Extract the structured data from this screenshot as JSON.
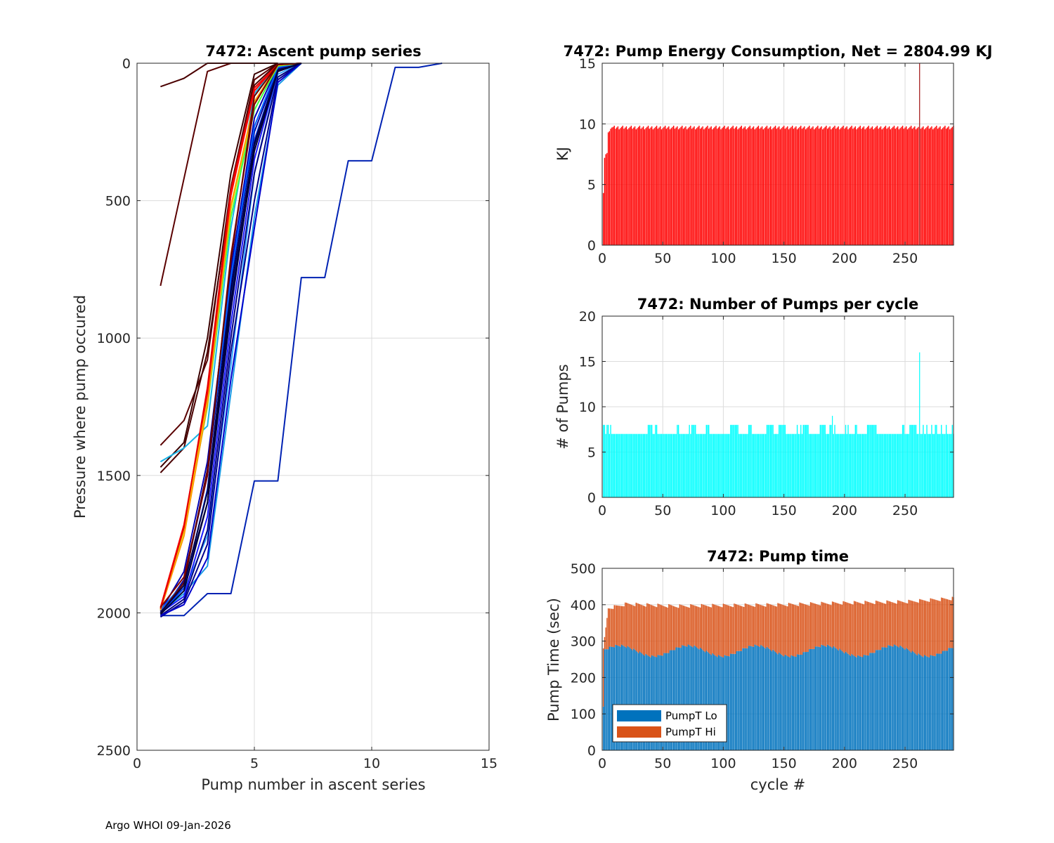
{
  "footer": "Argo WHOI 09-Jan-2026",
  "colors": {
    "energy_bar": "#ff0000",
    "pumps_bar": "#00ffff",
    "pumpT_lo": "#0072bd",
    "pumpT_hi": "#d95319",
    "grid": "#dcdcdc",
    "axis": "#262626"
  },
  "chart_data": [
    {
      "id": "ascent",
      "type": "line",
      "title": "7472: Ascent pump series",
      "xlabel": "Pump number in ascent series",
      "ylabel": "Pressure where pump occured",
      "xlim": [
        0,
        15
      ],
      "ylim": [
        0,
        2500
      ],
      "y_reversed": true,
      "xticks": [
        0,
        5,
        10,
        15
      ],
      "yticks": [
        0,
        500,
        1000,
        1500,
        2000,
        2500
      ],
      "grid": true,
      "series": [
        {
          "name": "dark-red 1",
          "color": "#5a0000",
          "x": [
            1,
            2,
            3,
            4,
            5,
            6
          ],
          "y": [
            810,
            420,
            30,
            0,
            0,
            0
          ]
        },
        {
          "name": "dark-red 2",
          "color": "#4a0000",
          "x": [
            1,
            2,
            3,
            4,
            5,
            6
          ],
          "y": [
            85,
            55,
            0,
            0,
            0,
            0
          ]
        },
        {
          "name": "dark-red 3",
          "color": "#5a0000",
          "x": [
            1,
            2,
            3,
            4,
            5,
            6
          ],
          "y": [
            1390,
            1300,
            1080,
            450,
            60,
            0
          ]
        },
        {
          "name": "dark-red 4",
          "color": "#3a0000",
          "x": [
            1,
            2,
            3,
            4,
            5,
            6
          ],
          "y": [
            1470,
            1380,
            1000,
            400,
            40,
            0
          ]
        },
        {
          "name": "dark-red 5",
          "color": "#4a0000",
          "x": [
            1,
            2,
            3,
            4,
            5,
            6
          ],
          "y": [
            1490,
            1400,
            1050,
            480,
            80,
            0
          ]
        },
        {
          "name": "cyan",
          "color": "#19b3e6",
          "x": [
            1,
            2,
            3,
            4,
            5,
            6,
            7
          ],
          "y": [
            1450,
            1400,
            1320,
            600,
            110,
            5,
            0
          ]
        },
        {
          "name": "outlier",
          "color": "#0022b3",
          "x": [
            1,
            2,
            3,
            4,
            5,
            6,
            7,
            8,
            9,
            10,
            11,
            12,
            13
          ],
          "y": [
            2010,
            2010,
            1930,
            1930,
            1520,
            1520,
            780,
            780,
            355,
            355,
            15,
            15,
            0
          ]
        },
        {
          "name": "sky 1",
          "color": "#1a9be6",
          "x": [
            1,
            2,
            3,
            4,
            5,
            6,
            7
          ],
          "y": [
            2000,
            1930,
            1830,
            1200,
            560,
            80,
            0
          ]
        },
        {
          "name": "sky 2",
          "color": "#33a6ff",
          "x": [
            1,
            2,
            3,
            4,
            5,
            6,
            7
          ],
          "y": [
            2000,
            1920,
            1720,
            1100,
            400,
            40,
            0
          ]
        },
        {
          "name": "navy 1",
          "color": "#000080",
          "x": [
            1,
            2,
            3,
            4,
            5,
            6,
            7
          ],
          "y": [
            2010,
            1950,
            1700,
            1000,
            400,
            50,
            0
          ]
        },
        {
          "name": "navy 2",
          "color": "#00008b",
          "x": [
            1,
            2,
            3,
            4,
            5,
            6,
            7
          ],
          "y": [
            2015,
            1960,
            1750,
            1050,
            500,
            60,
            0
          ]
        },
        {
          "name": "navy 3",
          "color": "#000066",
          "x": [
            1,
            2,
            3,
            4,
            5,
            6,
            7
          ],
          "y": [
            2000,
            1900,
            1600,
            900,
            300,
            30,
            0
          ]
        },
        {
          "name": "navy 4",
          "color": "#000099",
          "x": [
            1,
            2,
            3,
            4,
            5,
            6,
            7
          ],
          "y": [
            2005,
            1880,
            1500,
            800,
            250,
            20,
            0
          ]
        },
        {
          "name": "navy 5",
          "color": "#0000b3",
          "x": [
            1,
            2,
            3,
            4,
            5,
            6,
            7
          ],
          "y": [
            1995,
            1850,
            1450,
            750,
            200,
            10,
            0
          ]
        },
        {
          "name": "blue 1",
          "color": "#0000cc",
          "x": [
            1,
            2,
            3,
            4,
            5,
            6,
            7
          ],
          "y": [
            2010,
            1970,
            1800,
            1150,
            600,
            70,
            0
          ]
        },
        {
          "name": "blue 2",
          "color": "#1a1aff",
          "x": [
            1,
            2,
            3,
            4,
            5,
            6,
            7
          ],
          "y": [
            2000,
            1940,
            1650,
            950,
            350,
            30,
            0
          ]
        },
        {
          "name": "blue 3",
          "color": "#0040ff",
          "x": [
            1,
            2,
            3,
            4,
            5,
            6,
            7
          ],
          "y": [
            2000,
            1910,
            1550,
            850,
            280,
            25,
            0
          ]
        },
        {
          "name": "blue 4",
          "color": "#0060ff",
          "x": [
            1,
            2,
            3,
            4,
            5,
            6,
            7
          ],
          "y": [
            1990,
            1890,
            1480,
            780,
            230,
            15,
            0
          ]
        },
        {
          "name": "green",
          "color": "#40ff40",
          "x": [
            1,
            2,
            3,
            4,
            5,
            6,
            7
          ],
          "y": [
            1990,
            1700,
            1250,
            560,
            170,
            10,
            0
          ]
        },
        {
          "name": "yellow",
          "color": "#e6e600",
          "x": [
            1,
            2,
            3,
            4,
            5,
            6,
            7
          ],
          "y": [
            1985,
            1700,
            1220,
            530,
            150,
            8,
            0
          ]
        },
        {
          "name": "orange",
          "color": "#ff9900",
          "x": [
            1,
            2,
            3,
            4,
            5,
            6,
            7
          ],
          "y": [
            1990,
            1720,
            1240,
            520,
            140,
            6,
            0
          ]
        },
        {
          "name": "red 1",
          "color": "#ff0000",
          "x": [
            1,
            2,
            3,
            4,
            5,
            6,
            7
          ],
          "y": [
            1980,
            1680,
            1200,
            480,
            100,
            5,
            0
          ]
        },
        {
          "name": "red 2",
          "color": "#e60000",
          "x": [
            1,
            2,
            3,
            4,
            5,
            6,
            7
          ],
          "y": [
            1985,
            1690,
            1180,
            460,
            90,
            5,
            0
          ]
        },
        {
          "name": "dark-red 6",
          "color": "#800000",
          "x": [
            1,
            2,
            3,
            4,
            5,
            6,
            7
          ],
          "y": [
            1980,
            1870,
            1500,
            700,
            150,
            5,
            0
          ]
        },
        {
          "name": "dark-red 7",
          "color": "#660000",
          "x": [
            1,
            2,
            3,
            4,
            5,
            6,
            7
          ],
          "y": [
            2000,
            1890,
            1480,
            720,
            120,
            5,
            0
          ]
        },
        {
          "name": "black-navy 1",
          "color": "#000033",
          "x": [
            1,
            2,
            3,
            4,
            5,
            6,
            7
          ],
          "y": [
            2005,
            1920,
            1600,
            870,
            320,
            30,
            0
          ]
        },
        {
          "name": "black-navy 2",
          "color": "#000044",
          "x": [
            1,
            2,
            3,
            4,
            5,
            6,
            7
          ],
          "y": [
            2000,
            1900,
            1560,
            830,
            290,
            25,
            0
          ]
        }
      ]
    },
    {
      "id": "energy",
      "type": "bar",
      "title": "7472: Pump Energy Consumption,  Net = 2804.99 KJ",
      "xlabel": "",
      "ylabel": "KJ",
      "xlim": [
        0,
        290
      ],
      "ylim": [
        0,
        15
      ],
      "xticks": [
        0,
        50,
        100,
        150,
        200,
        250
      ],
      "yticks": [
        0,
        5,
        10,
        15
      ],
      "grid": true,
      "cycles": 290,
      "typical_value": 9.7,
      "early_values": [
        {
          "cycle": 1,
          "value": 4.3
        },
        {
          "cycle": 2,
          "value": 7.2
        },
        {
          "cycle": 3,
          "value": 7.5
        },
        {
          "cycle": 4,
          "value": 7.6
        },
        {
          "cycle": 5,
          "value": 9.3
        },
        {
          "cycle": 6,
          "value": 9.4
        },
        {
          "cycle": 7,
          "value": 9.6
        },
        {
          "cycle": 8,
          "value": 9.7
        }
      ],
      "spike": {
        "cycle": 262,
        "value": 15
      }
    },
    {
      "id": "pumps",
      "type": "bar",
      "title": "7472: Number of Pumps per cycle",
      "xlabel": "",
      "ylabel": "# of Pumps",
      "xlim": [
        0,
        290
      ],
      "ylim": [
        0,
        20
      ],
      "xticks": [
        0,
        50,
        100,
        150,
        200,
        250
      ],
      "yticks": [
        0,
        5,
        10,
        15,
        20
      ],
      "grid": true,
      "cycles": 290,
      "typical_value": 7,
      "eight_pump_cycles": [
        1,
        2,
        4,
        5,
        7,
        38,
        39,
        40,
        41,
        44,
        45,
        62,
        63,
        72,
        74,
        75,
        76,
        77,
        86,
        87,
        88,
        106,
        107,
        108,
        109,
        110,
        111,
        112,
        121,
        122,
        123,
        136,
        137,
        138,
        139,
        140,
        141,
        146,
        147,
        148,
        149,
        150,
        151,
        161,
        164,
        166,
        167,
        168,
        169,
        170,
        180,
        181,
        182,
        183,
        184,
        188,
        189,
        192,
        201,
        203,
        209,
        210,
        219,
        220,
        221,
        222,
        223,
        224,
        225,
        226,
        248,
        249,
        254,
        255,
        256,
        257,
        258,
        259,
        265,
        268,
        272,
        275,
        276,
        280,
        284,
        289
      ],
      "spikes": [
        {
          "cycle": 190,
          "value": 9
        },
        {
          "cycle": 262,
          "value": 16
        }
      ]
    },
    {
      "id": "pumptime",
      "type": "bar",
      "stacked": true,
      "title": "7472: Pump time",
      "xlabel": "cycle #",
      "ylabel": "Pump Time (sec)",
      "xlim": [
        0,
        290
      ],
      "ylim": [
        0,
        500
      ],
      "xticks": [
        0,
        50,
        100,
        150,
        200,
        250
      ],
      "yticks": [
        0,
        100,
        200,
        300,
        400,
        500
      ],
      "grid": true,
      "cycles": 290,
      "legend": {
        "position": "bottom-left",
        "entries": [
          "PumpT Lo",
          "PumpT Hi"
        ]
      },
      "series": [
        {
          "name": "PumpT Lo",
          "first_cycle_value": 120,
          "typical_range": [
            255,
            292
          ]
        },
        {
          "name": "PumpT Hi",
          "first_cycle_value": 160,
          "typical_range": [
            108,
            128
          ]
        }
      ],
      "total_trend": [
        {
          "cycle": 1,
          "total": 280
        },
        {
          "cycle": 5,
          "total": 390
        },
        {
          "cycle": 20,
          "total": 402
        },
        {
          "cycle": 60,
          "total": 396
        },
        {
          "cycle": 100,
          "total": 398
        },
        {
          "cycle": 150,
          "total": 400
        },
        {
          "cycle": 200,
          "total": 405
        },
        {
          "cycle": 250,
          "total": 408
        },
        {
          "cycle": 289,
          "total": 417
        }
      ]
    }
  ]
}
